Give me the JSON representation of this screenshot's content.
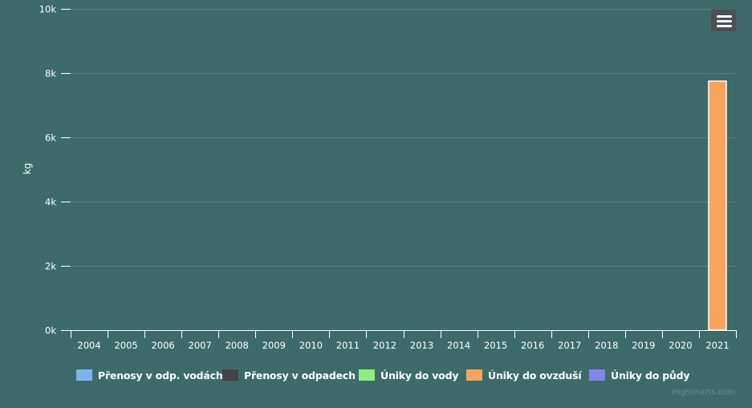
{
  "chart_data": {
    "type": "bar",
    "title": "",
    "xlabel": "",
    "ylabel": "kg",
    "ylim": [
      0,
      10000
    ],
    "yticks": [
      0,
      2000,
      4000,
      6000,
      8000,
      10000
    ],
    "ytick_labels": [
      "0k",
      "2k",
      "4k",
      "6k",
      "8k",
      "10k"
    ],
    "categories": [
      "2004",
      "2005",
      "2006",
      "2007",
      "2008",
      "2009",
      "2010",
      "2011",
      "2012",
      "2013",
      "2014",
      "2015",
      "2016",
      "2017",
      "2018",
      "2019",
      "2020",
      "2021"
    ],
    "grid": true,
    "legend_position": "bottom-center",
    "series": [
      {
        "name": "Přenosy v odp. vodách",
        "color": "#7cb5ec",
        "values": [
          0,
          0,
          0,
          0,
          0,
          0,
          0,
          0,
          0,
          0,
          0,
          0,
          0,
          0,
          0,
          0,
          0,
          0
        ]
      },
      {
        "name": "Přenosy v odpadech",
        "color": "#434348",
        "values": [
          0,
          0,
          0,
          0,
          0,
          0,
          0,
          0,
          0,
          0,
          0,
          0,
          0,
          0,
          0,
          0,
          0,
          0
        ]
      },
      {
        "name": "Úniky do vody",
        "color": "#90ed7d",
        "values": [
          0,
          0,
          0,
          0,
          0,
          0,
          0,
          0,
          0,
          0,
          0,
          0,
          0,
          0,
          0,
          0,
          0,
          0
        ]
      },
      {
        "name": "Úniky do ovzduší",
        "color": "#f7a35c",
        "values": [
          0,
          0,
          0,
          0,
          0,
          0,
          0,
          0,
          0,
          0,
          0,
          0,
          0,
          0,
          0,
          0,
          0,
          7750
        ]
      },
      {
        "name": "Úniky do půdy",
        "color": "#8085e9",
        "values": [
          0,
          0,
          0,
          0,
          0,
          0,
          0,
          0,
          0,
          0,
          0,
          0,
          0,
          0,
          0,
          0,
          0,
          0
        ]
      }
    ]
  },
  "credits": "Highcharts.com",
  "menu_icon": "hamburger-menu-icon"
}
